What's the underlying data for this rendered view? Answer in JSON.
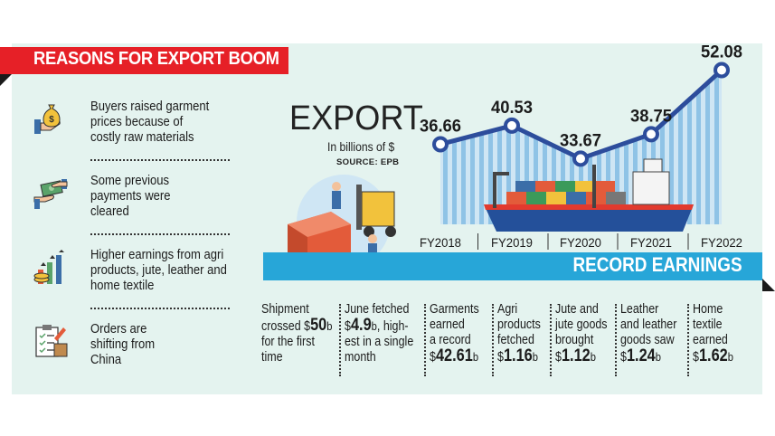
{
  "header": {
    "title": "REASONS FOR EXPORT BOOM"
  },
  "reasons": [
    {
      "icon": "money-bag-hand-icon",
      "lines": [
        "Buyers raised garment",
        "prices because of",
        "costly raw materials"
      ]
    },
    {
      "icon": "payment-exchange-icon",
      "lines": [
        "Some previous",
        "payments were",
        "cleared"
      ]
    },
    {
      "icon": "growth-coins-icon",
      "lines": [
        "Higher earnings from agri",
        "products, jute, leather and",
        "home textile"
      ]
    },
    {
      "icon": "order-clipboard-icon",
      "lines": [
        "Orders are",
        "shifting from",
        "China"
      ]
    }
  ],
  "export_block": {
    "title": "EXPORT",
    "subtitle": "In billions of $",
    "source": "SOURCE: EPB"
  },
  "chart_data": {
    "type": "line",
    "categories": [
      "FY2018",
      "FY2019",
      "FY2020",
      "FY2021",
      "FY2022"
    ],
    "values": [
      36.66,
      40.53,
      33.67,
      38.75,
      52.08
    ],
    "value_labels": [
      "36.66",
      "40.53",
      "33.67",
      "38.75",
      "52.08"
    ],
    "title": "EXPORT",
    "subtitle": "In billions of $",
    "source": "SOURCE: EPB",
    "ylim": [
      20,
      55
    ],
    "grid": false,
    "line_color": "#2d4d9c",
    "fill_color": "#a9d4ec"
  },
  "record_band": {
    "label": "RECORD EARNINGS"
  },
  "facts": [
    {
      "pre": [
        "Shipment",
        "crossed "
      ],
      "currency": "$",
      "value": "50",
      "unit": "b",
      "post": [
        "for the first",
        "time"
      ]
    },
    {
      "pre": [
        "June fetched"
      ],
      "currency": "$",
      "value": "4.9",
      "unit": "b",
      "inline_after": ", high-",
      "post": [
        "est in a single",
        "month"
      ]
    },
    {
      "pre": [
        "Garments",
        "earned",
        "a record"
      ],
      "currency": "$",
      "value": "42.61",
      "unit": "b",
      "post": []
    },
    {
      "pre": [
        "Agri",
        "products",
        "fetched"
      ],
      "currency": "$",
      "value": "1.16",
      "unit": "b",
      "post": []
    },
    {
      "pre": [
        "Jute and",
        "jute goods",
        "brought"
      ],
      "currency": "$",
      "value": "1.12",
      "unit": "b",
      "post": []
    },
    {
      "pre": [
        "Leather",
        "and leather",
        "goods saw"
      ],
      "currency": "$",
      "value": "1.24",
      "unit": "b",
      "post": []
    },
    {
      "pre": [
        "Home",
        "textile",
        "earned"
      ],
      "currency": "$",
      "value": "1.62",
      "unit": "b",
      "post": []
    }
  ],
  "colors": {
    "header": "#e62027",
    "panel": "#e4f3ef",
    "band": "#27a6d8"
  }
}
